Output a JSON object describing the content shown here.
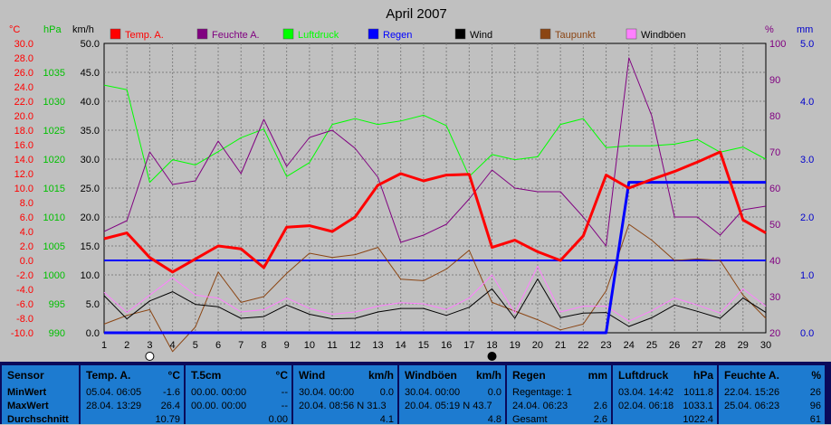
{
  "chart_data": {
    "type": "line",
    "title": "April 2007",
    "x": [
      1,
      2,
      3,
      4,
      5,
      6,
      7,
      8,
      9,
      10,
      11,
      12,
      13,
      14,
      15,
      16,
      17,
      18,
      19,
      20,
      21,
      22,
      23,
      24,
      25,
      26,
      27,
      28,
      29,
      30
    ],
    "axes": {
      "temp": {
        "unit": "°C",
        "ylim": [
          -10,
          30
        ],
        "ticks": [
          "30.0",
          "28.0",
          "26.0",
          "24.0",
          "22.0",
          "20.0",
          "18.0",
          "16.0",
          "14.0",
          "12.0",
          "10.0",
          "8.0",
          "6.0",
          "4.0",
          "2.0",
          "0.0",
          "-2.0",
          "-4.0",
          "-6.0",
          "-8.0",
          "-10.0"
        ]
      },
      "press": {
        "unit": "hPa",
        "ylim": [
          990,
          1040
        ],
        "ticks": [
          "1035",
          "1030",
          "1025",
          "1020",
          "1015",
          "1010",
          "1005",
          "1000",
          "995",
          "990"
        ]
      },
      "wind": {
        "unit": "km/h",
        "ylim": [
          0,
          50
        ],
        "ticks": [
          "50.0",
          "45.0",
          "40.0",
          "35.0",
          "30.0",
          "25.0",
          "20.0",
          "15.0",
          "10.0",
          "5.0",
          "0.0"
        ]
      },
      "humid": {
        "unit": "%",
        "ylim": [
          20,
          100
        ],
        "ticks": [
          "100",
          "90",
          "80",
          "70",
          "60",
          "50",
          "40",
          "30",
          "20"
        ]
      },
      "rain": {
        "unit": "mm",
        "ylim": [
          0,
          5
        ],
        "ticks": [
          "5.0",
          "4.0",
          "3.0",
          "2.0",
          "1.0",
          "0.0"
        ]
      }
    },
    "series": [
      {
        "name": "Temp. A.",
        "axis": "temp",
        "color": "#ff0000",
        "width": 3,
        "values": [
          3.0,
          3.8,
          0.4,
          -1.6,
          0.2,
          2.0,
          1.6,
          -1.0,
          4.6,
          4.8,
          4.0,
          6.0,
          10.4,
          12.0,
          11.0,
          11.8,
          11.9,
          1.8,
          2.8,
          1.2,
          0.0,
          3.4,
          11.8,
          10.0,
          11.2,
          12.3,
          13.6,
          15.0,
          5.6,
          3.8
        ]
      },
      {
        "name": "Feuchte A.",
        "axis": "humid",
        "color": "#800080",
        "width": 1,
        "values": [
          48,
          51,
          70,
          61,
          62,
          73,
          64,
          79,
          66,
          74,
          76,
          71,
          63,
          45,
          47,
          50,
          57,
          65,
          60,
          59,
          59,
          52,
          44,
          96,
          80,
          52,
          52,
          47,
          54,
          55
        ]
      },
      {
        "name": "Luftdruck",
        "axis": "press",
        "color": "#00ff00",
        "width": 1,
        "values": [
          1032.8,
          1032.0,
          1016.0,
          1019.9,
          1019.0,
          1021.3,
          1023.7,
          1025.2,
          1017.0,
          1019.4,
          1026.0,
          1027.0,
          1026.0,
          1026.6,
          1027.6,
          1025.8,
          1017.0,
          1020.8,
          1019.9,
          1020.4,
          1026.0,
          1027.0,
          1022.0,
          1022.3,
          1022.3,
          1022.6,
          1023.4,
          1021.2,
          1022.1,
          1020.0
        ]
      },
      {
        "name": "Regen",
        "axis": "rain",
        "color": "#0000ff",
        "width": 3,
        "values": [
          0,
          0,
          0,
          0,
          0,
          0,
          0,
          0,
          0,
          0,
          0,
          0,
          0,
          0,
          0,
          0,
          0,
          0,
          0,
          0,
          0,
          0,
          0,
          2.6,
          2.6,
          2.6,
          2.6,
          2.6,
          2.6,
          2.6
        ]
      },
      {
        "name": "Wind",
        "axis": "wind",
        "color": "#000000",
        "width": 1,
        "values": [
          6.4,
          2.4,
          5.5,
          7.1,
          4.9,
          4.5,
          2.5,
          2.8,
          4.8,
          3.2,
          2.4,
          2.5,
          3.6,
          4.2,
          4.2,
          3.0,
          4.4,
          7.6,
          2.5,
          9.3,
          2.6,
          3.4,
          3.5,
          1.1,
          2.6,
          4.8,
          3.7,
          2.5,
          6.0,
          3.5
        ]
      },
      {
        "name": "Taupunkt",
        "axis": "temp",
        "color": "#8b4513",
        "width": 1,
        "values": [
          -8.8,
          -7.6,
          -6.8,
          -12.6,
          -9.2,
          -1.6,
          -5.8,
          -5.0,
          -1.8,
          1.0,
          0.4,
          0.8,
          1.8,
          -2.6,
          -2.8,
          -1.2,
          1.4,
          -5.8,
          -7.0,
          -8.2,
          -9.6,
          -8.8,
          -4.2,
          5.0,
          2.8,
          0.0,
          0.2,
          0.0,
          -4.8,
          -8.0
        ]
      },
      {
        "name": "Windböen",
        "axis": "wind",
        "color": "#ff80ff",
        "width": 1,
        "values": [
          7.0,
          3.5,
          6.5,
          9.5,
          6.5,
          6.0,
          3.6,
          4.0,
          6.0,
          4.2,
          3.2,
          3.6,
          4.6,
          5.2,
          5.0,
          4.0,
          6.0,
          10.0,
          3.4,
          11.5,
          3.6,
          4.6,
          4.6,
          2.0,
          3.8,
          6.0,
          4.8,
          3.4,
          7.6,
          4.6
        ]
      }
    ],
    "axis_headers": {
      "temp": "°C",
      "press": "hPa",
      "wind": "km/h",
      "humid": "%",
      "rain": "mm"
    },
    "xticks": [
      "1",
      "2",
      "3",
      "4",
      "5",
      "6",
      "7",
      "8",
      "9",
      "10",
      "11",
      "12",
      "13",
      "14",
      "15",
      "16",
      "17",
      "18",
      "19",
      "20",
      "21",
      "22",
      "23",
      "24",
      "25",
      "26",
      "27",
      "28",
      "29",
      "30"
    ],
    "moon_phases": [
      {
        "day": 3,
        "phase": "full"
      },
      {
        "day": 18,
        "phase": "new"
      }
    ],
    "grid": true,
    "legend_position": "top"
  },
  "colors": {
    "axis_temp": "#ff0000",
    "axis_press": "#00c000",
    "axis_wind": "#000000",
    "axis_humid": "#800080",
    "axis_rain": "#0000cc",
    "plot_bg": "#c0c0c0",
    "table_bg": "#1d7bd0"
  },
  "table": [
    {
      "head": "Sensor",
      "rows": [
        "MinWert",
        "MaxWert",
        "Durchschnitt"
      ]
    },
    {
      "head": "Temp. A.",
      "unit": "°C",
      "rows": [
        [
          "05.04.  06:05",
          "-1.6"
        ],
        [
          "28.04.  13:29",
          "26.4"
        ],
        [
          "",
          "10.79"
        ]
      ]
    },
    {
      "head": "T.5cm",
      "unit": "°C",
      "rows": [
        [
          "00.00.  00:00",
          "--"
        ],
        [
          "00.00.  00:00",
          "--"
        ],
        [
          "",
          "0.00"
        ]
      ]
    },
    {
      "head": "Wind",
      "unit": "km/h",
      "rows": [
        [
          "30.04.  00:00",
          "0.0"
        ],
        [
          "20.04.  08:56  N 31.3",
          ""
        ],
        [
          "",
          "4.1"
        ]
      ]
    },
    {
      "head": "Windböen",
      "unit": "km/h",
      "rows": [
        [
          "30.04.  00:00",
          "0.0"
        ],
        [
          "20.04.  05:19  N 43.7",
          ""
        ],
        [
          "",
          "4.8"
        ]
      ]
    },
    {
      "head": "Regen",
      "unit": "mm",
      "rows": [
        [
          "",
          ""
        ],
        [
          "Regentage: 1",
          ""
        ],
        [
          "24.04.  06:23",
          "2.6"
        ],
        [
          "Gesamt",
          "2.6"
        ]
      ]
    },
    {
      "head": "Luftdruck",
      "unit": "hPa",
      "rows": [
        [
          "03.04.  14:42",
          "1011.8"
        ],
        [
          "02.04.  06:18",
          "1033.1"
        ],
        [
          "",
          "1022.4"
        ]
      ]
    },
    {
      "head": "Feuchte A.",
      "unit": "%",
      "rows": [
        [
          "22.04.  15:26",
          "26"
        ],
        [
          "25.04.  06:23",
          "96"
        ],
        [
          "",
          "61"
        ]
      ]
    }
  ]
}
